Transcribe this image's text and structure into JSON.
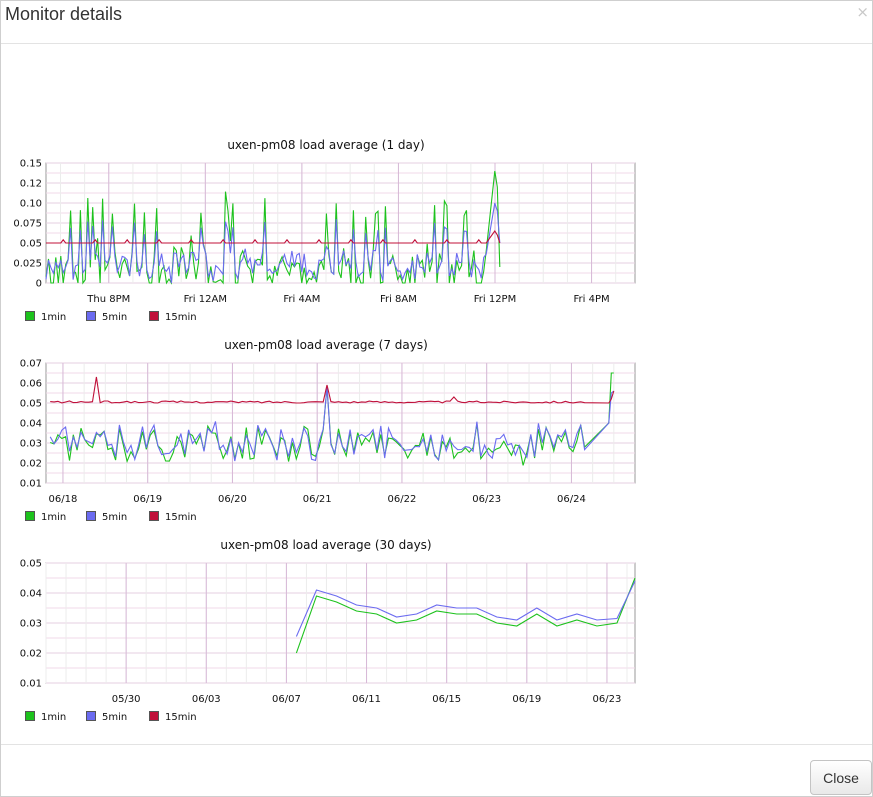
{
  "dialog": {
    "title": "Monitor details",
    "close_icon": "×",
    "close_button": "Close"
  },
  "legend": {
    "items": [
      {
        "label": "1min",
        "color": "#1dc21d"
      },
      {
        "label": "5min",
        "color": "#6b6bf0"
      },
      {
        "label": "15min",
        "color": "#c0103a"
      }
    ]
  },
  "chart_data": [
    {
      "type": "line",
      "title": "uxen-pm08 load average (1 day)",
      "ylim": [
        0,
        0.15
      ],
      "yticks": [
        0,
        0.025,
        0.05,
        0.075,
        0.1,
        0.125,
        0.15
      ],
      "ytick_labels": [
        "0",
        "0.025",
        "0.05",
        "0.075",
        "0.10",
        "0.12",
        "0.15"
      ],
      "xticks": [
        "Thu  8PM",
        "Fri 12AM",
        "Fri  4AM",
        "Fri  8AM",
        "Fri 12PM",
        "Fri  4PM"
      ],
      "x_start_hour": 17.4,
      "x_end_hour": 41.8,
      "xtick_hours": [
        20,
        24,
        28,
        32,
        36,
        40
      ],
      "data_end_hour": 36.2,
      "series": [
        {
          "name": "1min",
          "color": "#1dc21d",
          "baseline": 0.02,
          "noise": 0.05,
          "points": 180,
          "end": [
            0.14,
            0.12,
            0.02
          ]
        },
        {
          "name": "5min",
          "color": "#6b6bf0",
          "baseline": 0.025,
          "noise": 0.03,
          "points": 180,
          "end": [
            0.1,
            0.09,
            0.05
          ]
        },
        {
          "name": "15min",
          "color": "#c0103a",
          "baseline": 0.05,
          "noise": 0.0,
          "points": 180,
          "end": [
            0.065,
            0.06,
            0.05
          ]
        }
      ]
    },
    {
      "type": "line",
      "title": "uxen-pm08 load average (7 days)",
      "ylim": [
        0.01,
        0.07
      ],
      "yticks": [
        0.01,
        0.02,
        0.03,
        0.04,
        0.05,
        0.06,
        0.07
      ],
      "ytick_labels": [
        "0.01",
        "0.02",
        "0.03",
        "0.04",
        "0.05",
        "0.06",
        "0.07"
      ],
      "xticks": [
        "06/18",
        "06/19",
        "06/20",
        "06/21",
        "06/22",
        "06/23",
        "06/24"
      ],
      "x_start_day": 17.8,
      "x_end_day": 24.75,
      "xtick_days": [
        18,
        19,
        20,
        21,
        22,
        23,
        24
      ],
      "data_end_day": 24.5,
      "series": [
        {
          "name": "1min",
          "color": "#1dc21d",
          "baseline": 0.03,
          "noise": 0.012,
          "points": 140,
          "end": [
            0.04,
            0.065,
            0.065
          ]
        },
        {
          "name": "5min",
          "color": "#6b6bf0",
          "baseline": 0.031,
          "noise": 0.011,
          "points": 140,
          "end": [
            0.04,
            0.055,
            0.056
          ]
        },
        {
          "name": "15min",
          "color": "#c0103a",
          "baseline": 0.0505,
          "noise": 0.001,
          "points": 140,
          "end": [
            0.05,
            0.052,
            0.056
          ]
        }
      ]
    },
    {
      "type": "line",
      "title": "uxen-pm08 load average (30 days)",
      "ylim": [
        0.01,
        0.05
      ],
      "yticks": [
        0.01,
        0.02,
        0.03,
        0.04,
        0.05
      ],
      "ytick_labels": [
        "0.01",
        "0.02",
        "0.03",
        "0.04",
        "0.05"
      ],
      "xticks": [
        "05/30",
        "06/03",
        "06/07",
        "06/11",
        "06/15",
        "06/19",
        "06/23"
      ],
      "x_start_day": 26.0,
      "x_end_day": 55.4,
      "xtick_days": [
        30,
        34,
        38,
        42,
        46,
        50,
        54
      ],
      "series": [
        {
          "name": "1min",
          "color": "#1dc21d",
          "x": [
            38.5,
            39.5,
            40.5,
            41.5,
            42.5,
            43.5,
            44.5,
            45.5,
            46.5,
            47.5,
            48.5,
            49.5,
            50.5,
            51.5,
            52.5,
            53.5,
            54.5,
            55.4
          ],
          "y": [
            0.02,
            0.039,
            0.037,
            0.034,
            0.033,
            0.03,
            0.031,
            0.034,
            0.033,
            0.033,
            0.03,
            0.029,
            0.033,
            0.029,
            0.031,
            0.029,
            0.03,
            0.045
          ]
        },
        {
          "name": "5min",
          "color": "#6b6bf0",
          "x": [
            38.5,
            39.5,
            40.5,
            41.5,
            42.5,
            43.5,
            44.5,
            45.5,
            46.5,
            47.5,
            48.5,
            49.5,
            50.5,
            51.5,
            52.5,
            53.5,
            54.5,
            55.4
          ],
          "y": [
            0.0255,
            0.041,
            0.039,
            0.036,
            0.035,
            0.032,
            0.033,
            0.036,
            0.035,
            0.035,
            0.032,
            0.031,
            0.035,
            0.031,
            0.033,
            0.031,
            0.0315,
            0.044
          ]
        }
      ]
    }
  ]
}
